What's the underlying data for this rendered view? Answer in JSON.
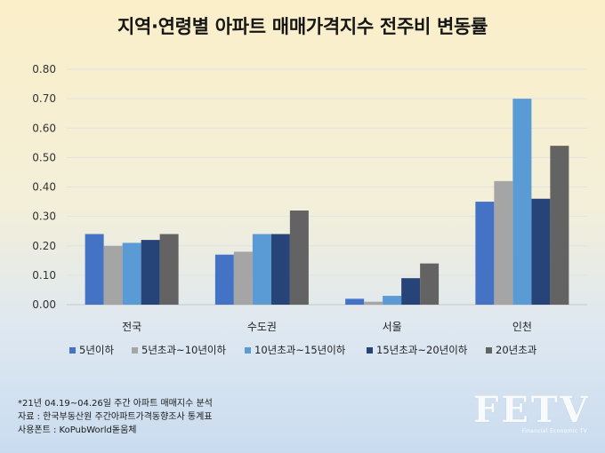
{
  "title": "지역·연령별 아파트 매매가격지수 전주비 변동률",
  "chart_data": {
    "type": "bar",
    "categories": [
      "전국",
      "수도권",
      "서울",
      "인천"
    ],
    "series": [
      {
        "name": "5년이하",
        "color": "#4472c4",
        "values": [
          0.24,
          0.17,
          0.02,
          0.35
        ]
      },
      {
        "name": "5년초과~10년이하",
        "color": "#a5a5a5",
        "values": [
          0.2,
          0.18,
          0.01,
          0.42
        ]
      },
      {
        "name": "10년초과~15년이하",
        "color": "#5b9bd5",
        "values": [
          0.21,
          0.24,
          0.03,
          0.7
        ]
      },
      {
        "name": "15년초과~20년이하",
        "color": "#264478",
        "values": [
          0.22,
          0.24,
          0.09,
          0.36
        ]
      },
      {
        "name": "20년초과",
        "color": "#636363",
        "values": [
          0.24,
          0.32,
          0.14,
          0.54
        ]
      }
    ],
    "ylim": [
      0,
      0.8
    ],
    "yticks": [
      "0.00",
      "0.10",
      "0.20",
      "0.30",
      "0.40",
      "0.50",
      "0.60",
      "0.70",
      "0.80"
    ],
    "grid": true,
    "legend": "bottom"
  },
  "footer": {
    "line1": "*21년 04.19~04.26일 주간 아파트 매매지수 분석",
    "line2": "자료 : 한국부동산원 주간아파트가격동향조사 통계표",
    "line3": "사용폰트 : KoPubWorld돋움체"
  },
  "logo": {
    "text": "FETV",
    "subtext": "Financial Economic TV"
  }
}
